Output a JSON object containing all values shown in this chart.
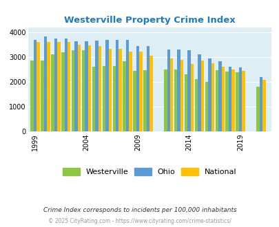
{
  "title": "Westerville Property Crime Index",
  "subtitle": "Crime Index corresponds to incidents per 100,000 inhabitants",
  "footer": "© 2025 CityRating.com - https://www.cityrating.com/crime-statistics/",
  "years": [
    1999,
    2000,
    2001,
    2002,
    2003,
    2004,
    2005,
    2006,
    2007,
    2008,
    2009,
    2010,
    2012,
    2013,
    2014,
    2015,
    2016,
    2017,
    2018,
    2019,
    2021
  ],
  "westerville": [
    2850,
    2850,
    3100,
    3200,
    3270,
    3280,
    2600,
    2640,
    2650,
    2840,
    2440,
    2460,
    2490,
    2490,
    2310,
    2120,
    2000,
    2460,
    2430,
    2400,
    1800
  ],
  "ohio": [
    3700,
    3820,
    3760,
    3760,
    3640,
    3640,
    3650,
    3680,
    3680,
    3700,
    3450,
    3450,
    3290,
    3290,
    3280,
    3110,
    2950,
    2830,
    2620,
    2580,
    2190
  ],
  "national": [
    3610,
    3610,
    3610,
    3600,
    3510,
    3460,
    3440,
    3340,
    3330,
    3220,
    3220,
    3050,
    2950,
    2880,
    2730,
    2870,
    2740,
    2620,
    2500,
    2450,
    2090
  ],
  "xtick_years": [
    1999,
    2004,
    2009,
    2014,
    2019
  ],
  "color_westerville": "#8dc63f",
  "color_ohio": "#5b9bd5",
  "color_national": "#ffc000",
  "title_color": "#1f7bbf",
  "subtitle_color": "#333333",
  "footer_color": "#999999",
  "bg_color": "#ddeef5",
  "plot_bg": "#ddeef5",
  "ylim": [
    0,
    4200
  ],
  "yticks": [
    0,
    1000,
    2000,
    3000,
    4000
  ]
}
